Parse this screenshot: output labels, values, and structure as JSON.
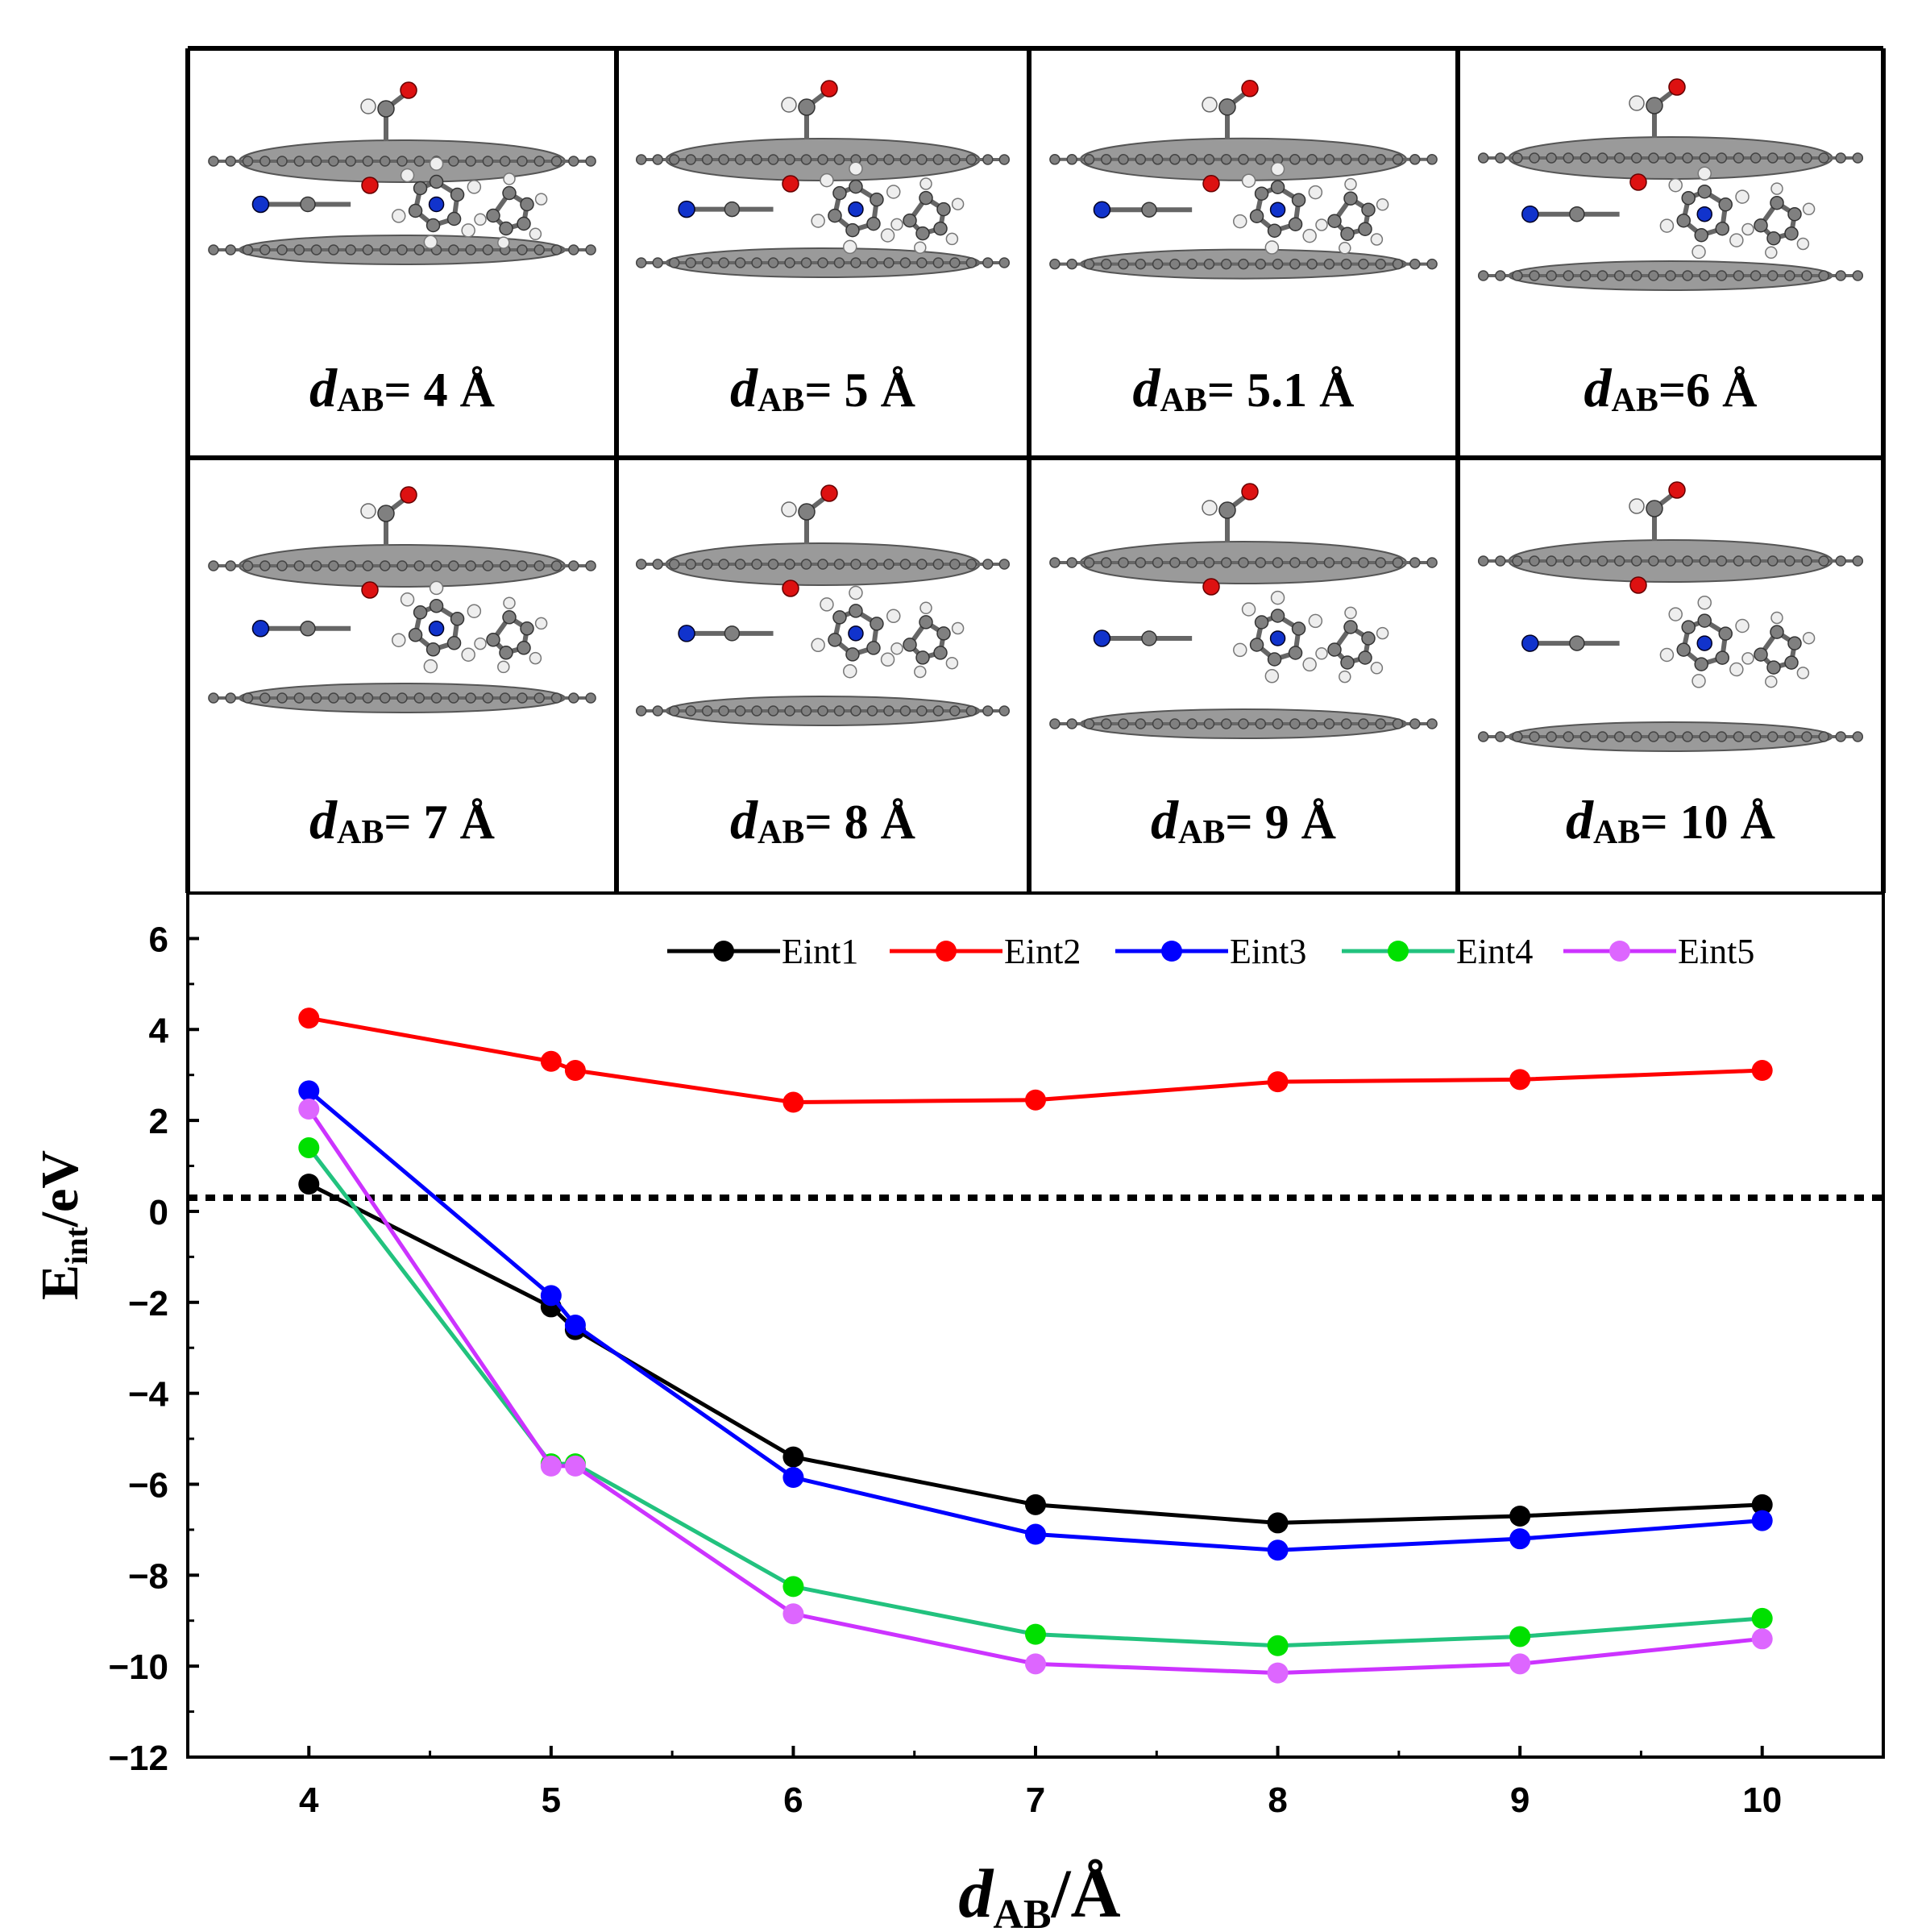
{
  "panels": [
    {
      "d": "4",
      "label_pre": "d",
      "label_sub": "AB",
      "label_post": "= 4 Å"
    },
    {
      "d": "5",
      "label_pre": "d",
      "label_sub": "AB",
      "label_post": "= 5 Å"
    },
    {
      "d": "5.1",
      "label_pre": "d",
      "label_sub": "AB",
      "label_post": "= 5.1 Å"
    },
    {
      "d": "6",
      "label_pre": "d",
      "label_sub": "AB",
      "label_post": "=6 Å"
    },
    {
      "d": "7",
      "label_pre": "d",
      "label_sub": "AB",
      "label_post": "= 7 Å"
    },
    {
      "d": "8",
      "label_pre": "d",
      "label_sub": "AB",
      "label_post": "= 8 Å"
    },
    {
      "d": "9",
      "label_pre": "d",
      "label_sub": "AB",
      "label_post": "= 9 Å"
    },
    {
      "d": "10",
      "label_pre": "d",
      "label_sub": "AB",
      "label_post": "= 10 Å"
    }
  ],
  "colors": {
    "Eint1": "#000000",
    "Eint2": "#ff0000",
    "Eint3": "#0000ff",
    "Eint4": "#22c27e",
    "Eint5": "#cc33ff",
    "marker4": "#00e000",
    "marker5": "#dd66ff",
    "carbon": "#808080",
    "oxygen": "#dd1111",
    "nitrogen": "#1133cc",
    "hydrogen": "#eeeeee"
  },
  "chart_data": {
    "type": "line",
    "x": [
      4,
      5,
      5.1,
      6,
      7,
      8,
      9,
      10
    ],
    "series": [
      {
        "name": "Eint1",
        "values": [
          0.6,
          -2.1,
          -2.6,
          -5.4,
          -6.45,
          -6.85,
          -6.7,
          -6.45
        ]
      },
      {
        "name": "Eint2",
        "values": [
          4.25,
          3.3,
          3.1,
          2.4,
          2.45,
          2.85,
          2.9,
          3.1
        ]
      },
      {
        "name": "Eint3",
        "values": [
          2.65,
          -1.85,
          -2.5,
          -5.85,
          -7.1,
          -7.45,
          -7.2,
          -6.8
        ]
      },
      {
        "name": "Eint4",
        "values": [
          1.4,
          -5.55,
          -5.55,
          -8.25,
          -9.3,
          -9.55,
          -9.35,
          -8.95
        ]
      },
      {
        "name": "Eint5",
        "values": [
          2.25,
          -5.6,
          -5.6,
          -8.85,
          -9.95,
          -10.15,
          -9.95,
          -9.4
        ]
      }
    ],
    "xlim": [
      3.5,
      10.5
    ],
    "ylim": [
      -12,
      7
    ],
    "xticks": [
      "4",
      "5",
      "6",
      "7",
      "8",
      "9",
      "10"
    ],
    "yticks": [
      "6",
      "4",
      "2",
      "0",
      "-2",
      "-4",
      "-6",
      "-8",
      "-10",
      "-12"
    ],
    "reference_line_y": 0.3,
    "xlabel_main": "d",
    "xlabel_sub": "AB",
    "xlabel_unit": "/Å",
    "ylabel_main": "E",
    "ylabel_sub": "int",
    "ylabel_unit": "/eV",
    "legend_position": "top-right"
  }
}
